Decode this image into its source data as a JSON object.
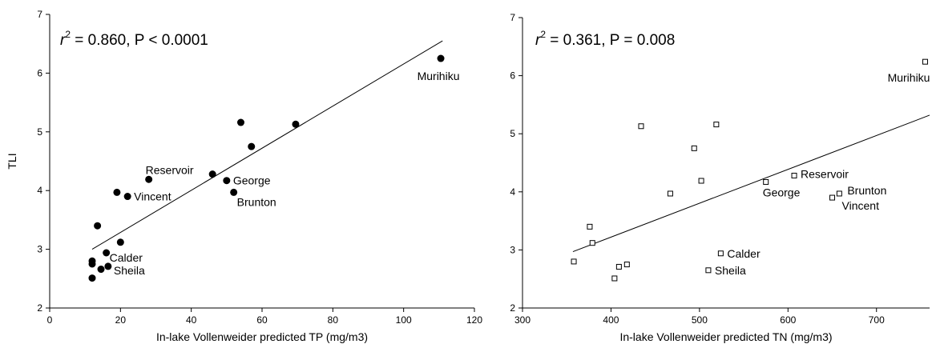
{
  "chart_data": [
    {
      "type": "scatter",
      "stat": {
        "r": "r",
        "sup": "2",
        "rest": " = 0.860,  P < 0.0001"
      },
      "xlabel": "In-lake Vollenweider predicted TP  (mg/m3)",
      "ylabel": "TLI",
      "x": [
        110.5,
        69.5,
        54,
        57,
        46,
        28,
        50,
        52,
        19,
        22,
        13.5,
        20,
        16,
        12,
        12,
        14.5,
        16.5,
        12
      ],
      "values": [
        6.25,
        5.13,
        5.16,
        4.75,
        4.28,
        4.19,
        4.17,
        3.97,
        3.97,
        3.9,
        3.4,
        3.12,
        2.94,
        2.8,
        2.75,
        2.66,
        2.71,
        2.51
      ],
      "point_labels": [
        "Murihiku",
        null,
        null,
        null,
        null,
        "Reservoir",
        "George",
        "Brunton",
        null,
        "Vincent",
        null,
        null,
        "Calder",
        null,
        null,
        null,
        "Sheila",
        null
      ],
      "fit": {
        "x": [
          12,
          111
        ],
        "y": [
          3.0,
          6.55
        ]
      },
      "color": "#000000",
      "marker": "circle",
      "xlim": [
        0,
        120
      ],
      "xticks": [
        0,
        20,
        40,
        60,
        80,
        100,
        120
      ],
      "ylim": [
        2,
        7
      ],
      "yticks": [
        2,
        3,
        4,
        5,
        6,
        7
      ]
    },
    {
      "type": "scatter",
      "stat": {
        "r": "r",
        "sup": "2",
        "rest": " = 0.361,  P = 0.008"
      },
      "xlabel": "In-lake Vollenweider predicted TN  (mg/m3)",
      "x": [
        755,
        434,
        519,
        494,
        607,
        502,
        575,
        658,
        467,
        650,
        376,
        379,
        524,
        358,
        418,
        510,
        409,
        404
      ],
      "values": [
        6.24,
        5.13,
        5.16,
        4.75,
        4.28,
        4.19,
        4.17,
        3.97,
        3.97,
        3.9,
        3.4,
        3.12,
        2.94,
        2.8,
        2.75,
        2.65,
        2.71,
        2.51
      ],
      "point_labels": [
        "Murihiku",
        null,
        null,
        null,
        "Reservoir",
        null,
        "George",
        "Brunton",
        null,
        "Vincent",
        null,
        null,
        "Calder",
        null,
        null,
        "Sheila",
        null,
        null
      ],
      "fit": {
        "x": [
          357,
          760
        ],
        "y": [
          2.97,
          5.32
        ]
      },
      "color": "#000000",
      "marker": "square",
      "xlim": [
        300,
        760
      ],
      "xticks": [
        300,
        400,
        500,
        600,
        700
      ],
      "ylim": [
        2,
        7
      ],
      "yticks": [
        2,
        3,
        4,
        5,
        6,
        7
      ]
    }
  ]
}
